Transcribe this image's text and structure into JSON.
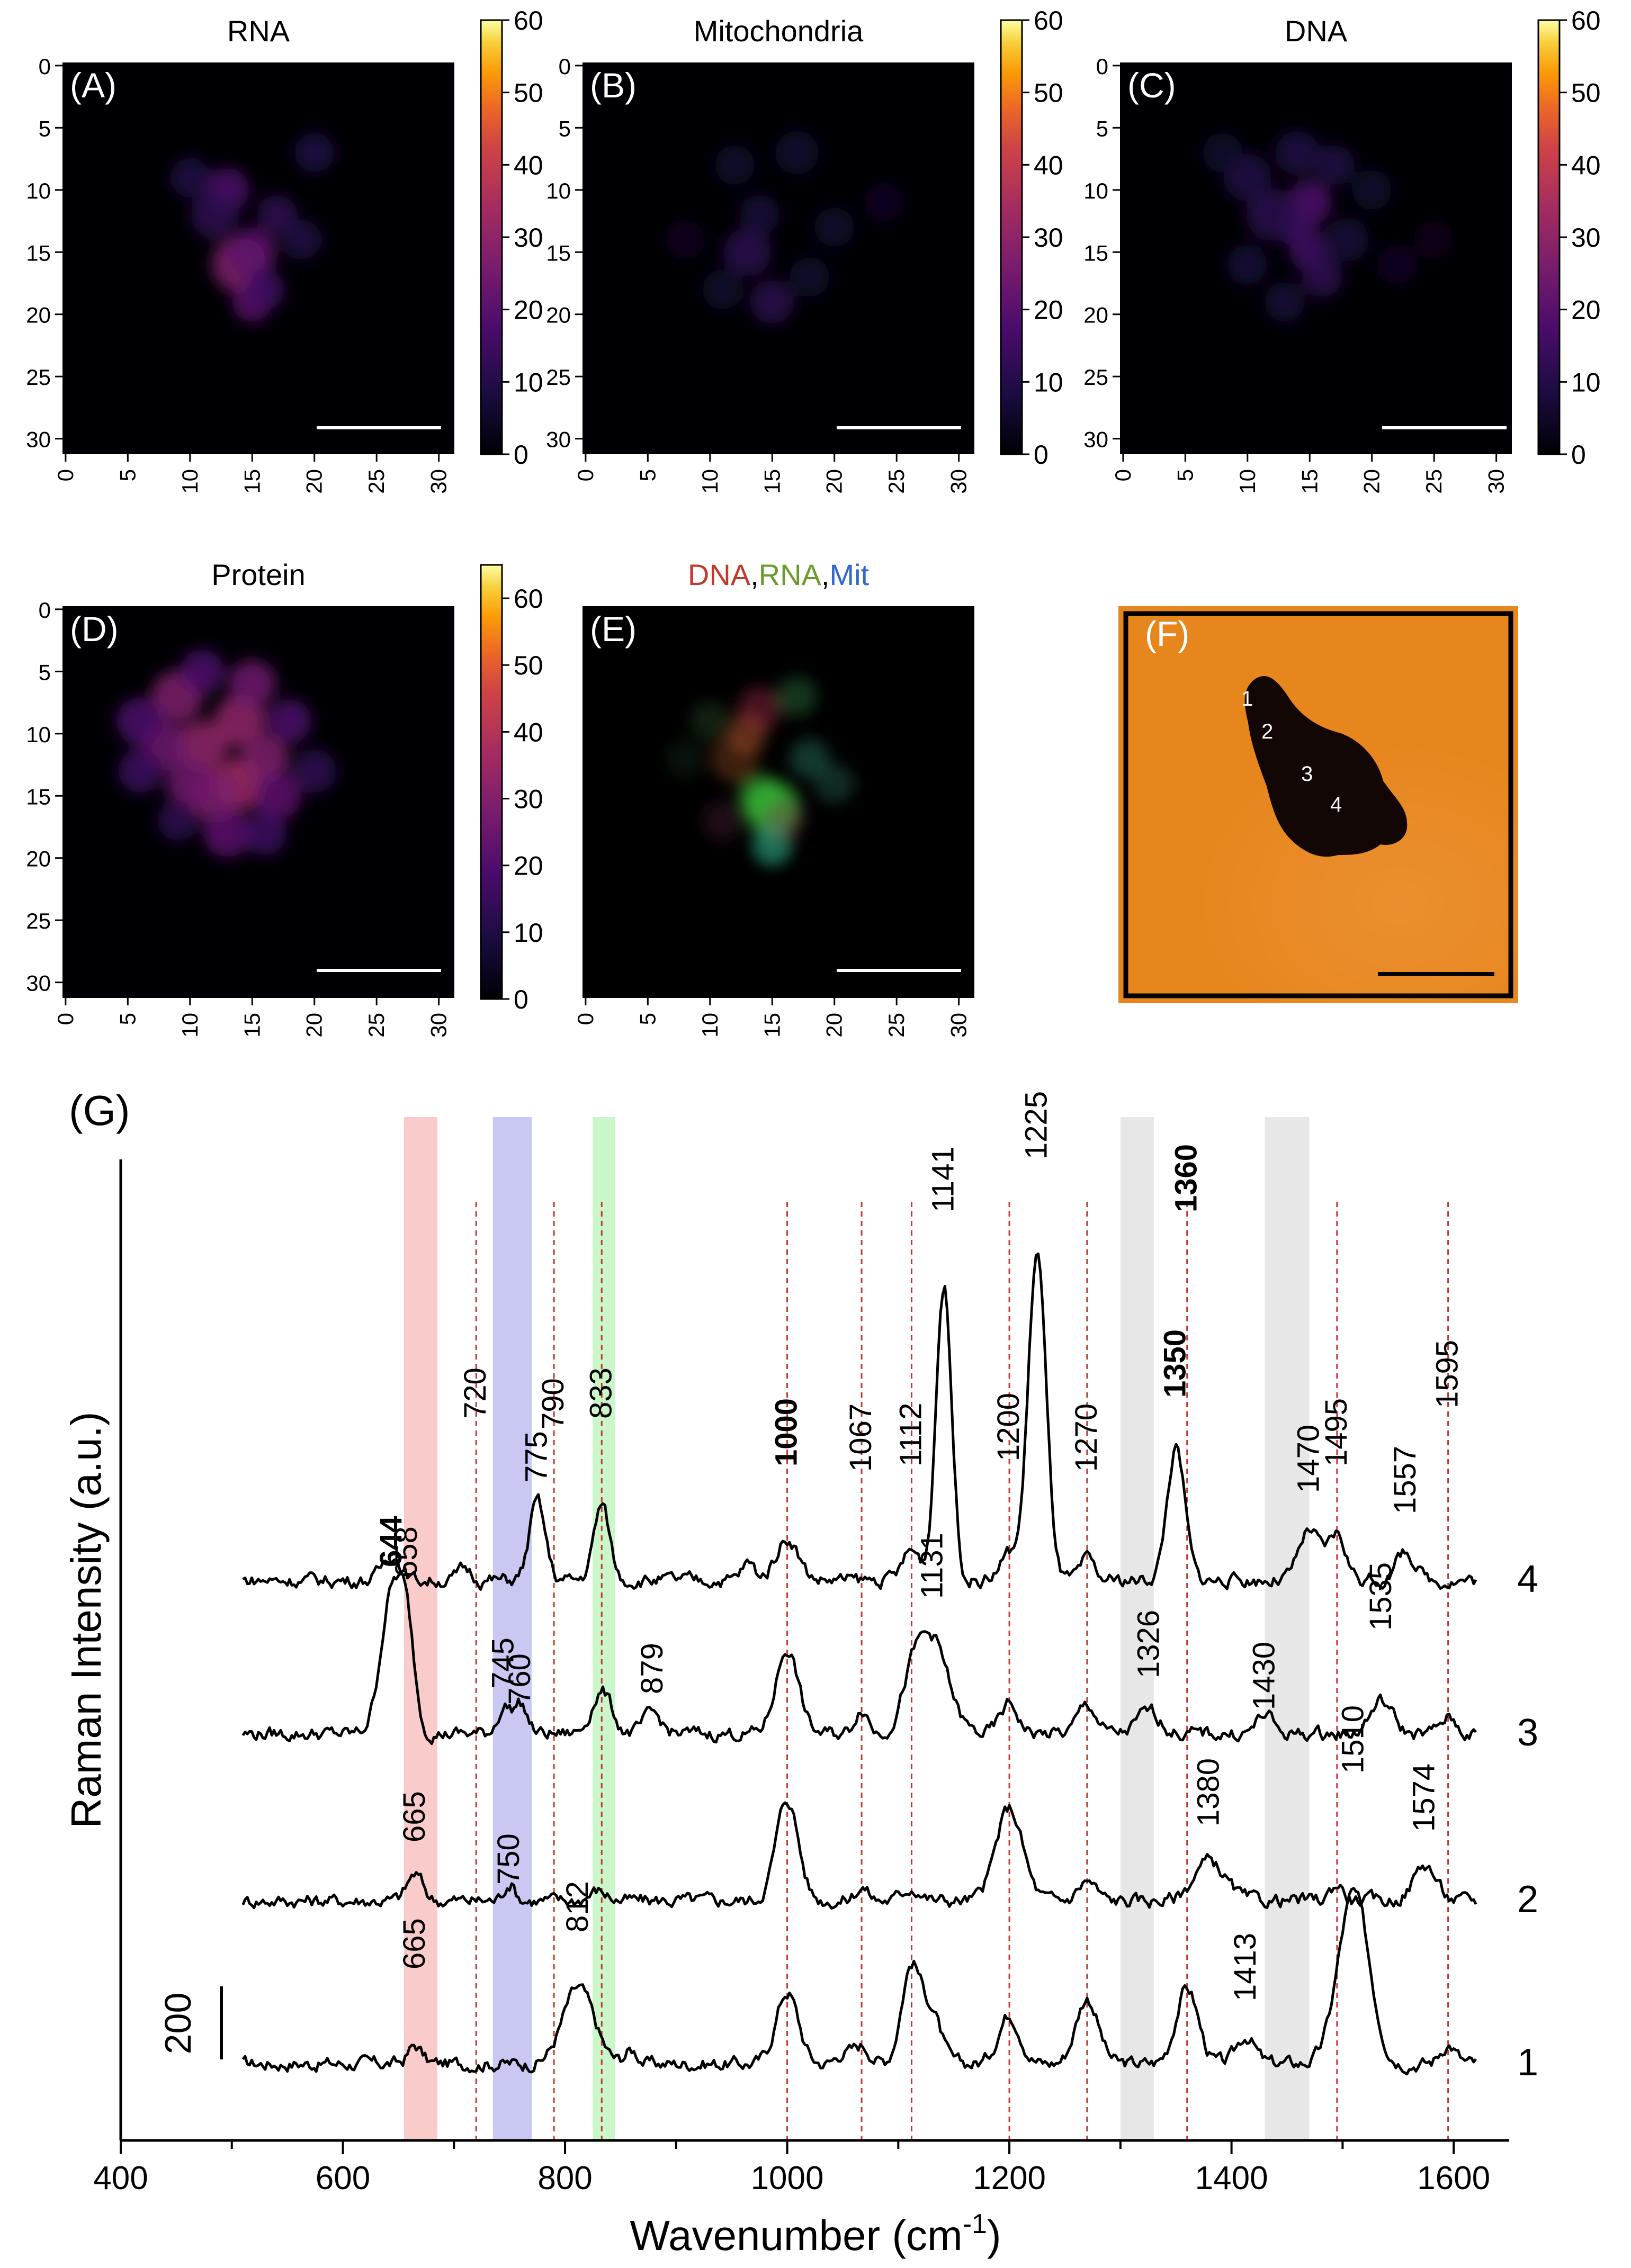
{
  "heatmaps": [
    {
      "letter": "(A)",
      "title": "RNA",
      "cmax": 60,
      "ticks": [
        "0",
        "10",
        "20",
        "30",
        "40",
        "50",
        "60"
      ],
      "blobs": [
        [
          14,
          16,
          1.4,
          0.45
        ],
        [
          15,
          15,
          1.2,
          0.35
        ],
        [
          15,
          19,
          1.0,
          0.35
        ],
        [
          13,
          10,
          1.1,
          0.3
        ],
        [
          12,
          12,
          1.2,
          0.2
        ],
        [
          17,
          12,
          1.0,
          0.2
        ],
        [
          10,
          9,
          1.0,
          0.15
        ],
        [
          20,
          7,
          1.0,
          0.15
        ],
        [
          19,
          14,
          1.0,
          0.15
        ],
        [
          16,
          18,
          1.0,
          0.25
        ]
      ]
    },
    {
      "letter": "(B)",
      "title": "Mitochondria",
      "cmax": 60,
      "ticks": [
        "0",
        "10",
        "20",
        "30",
        "40",
        "50",
        "60"
      ],
      "blobs": [
        [
          13,
          15,
          1.2,
          0.18
        ],
        [
          15,
          19,
          1.1,
          0.18
        ],
        [
          12,
          8,
          1.0,
          0.1
        ],
        [
          17,
          7,
          1.1,
          0.1
        ],
        [
          20,
          13,
          1.0,
          0.1
        ],
        [
          11,
          18,
          1.0,
          0.1
        ],
        [
          14,
          12,
          1.0,
          0.12
        ],
        [
          18,
          17,
          1.0,
          0.1
        ],
        [
          24,
          11,
          1.0,
          0.07
        ],
        [
          8,
          14,
          1.0,
          0.06
        ]
      ]
    },
    {
      "letter": "(C)",
      "title": "DNA",
      "cmax": 60,
      "ticks": [
        "0",
        "10",
        "20",
        "30",
        "40",
        "50",
        "60"
      ],
      "blobs": [
        [
          15,
          11,
          1.1,
          0.3
        ],
        [
          14,
          13,
          1.0,
          0.25
        ],
        [
          15,
          15,
          1.0,
          0.25
        ],
        [
          16,
          17,
          1.0,
          0.2
        ],
        [
          12,
          12,
          1.3,
          0.18
        ],
        [
          10,
          9,
          1.2,
          0.15
        ],
        [
          14,
          7,
          1.1,
          0.15
        ],
        [
          17,
          8,
          1.0,
          0.15
        ],
        [
          10,
          16,
          1.0,
          0.12
        ],
        [
          13,
          19,
          1.0,
          0.12
        ],
        [
          18,
          14,
          1.1,
          0.12
        ],
        [
          20,
          10,
          1.0,
          0.1
        ],
        [
          8,
          7,
          1.0,
          0.1
        ],
        [
          22,
          16,
          1.0,
          0.07
        ],
        [
          25,
          14,
          1.0,
          0.05
        ]
      ]
    },
    {
      "letter": "(D)",
      "title": "Protein",
      "cmax": 65,
      "ticks": [
        "0",
        "10",
        "20",
        "30",
        "40",
        "50",
        "60"
      ],
      "blobs": [
        [
          14,
          14,
          1.3,
          0.55
        ],
        [
          11,
          11,
          1.3,
          0.5
        ],
        [
          14,
          9,
          1.3,
          0.5
        ],
        [
          9,
          7,
          1.3,
          0.45
        ],
        [
          15,
          6,
          1.2,
          0.4
        ],
        [
          12,
          15,
          1.3,
          0.45
        ],
        [
          16,
          12,
          1.2,
          0.45
        ],
        [
          10,
          14,
          1.2,
          0.4
        ],
        [
          17,
          15,
          1.2,
          0.35
        ],
        [
          8,
          11,
          1.2,
          0.4
        ],
        [
          13,
          18,
          1.2,
          0.35
        ],
        [
          6,
          9,
          1.2,
          0.3
        ],
        [
          18,
          9,
          1.1,
          0.3
        ],
        [
          11,
          5,
          1.1,
          0.3
        ],
        [
          16,
          18,
          1.1,
          0.25
        ],
        [
          20,
          13,
          1.1,
          0.2
        ],
        [
          6,
          13,
          1.1,
          0.25
        ],
        [
          9,
          17,
          1.0,
          0.2
        ]
      ]
    }
  ],
  "composite": {
    "letter": "(E)",
    "title_parts": [
      {
        "text": "DNA",
        "color": "#c0392b"
      },
      {
        "text": ",",
        "color": "#000000"
      },
      {
        "text": "RNA",
        "color": "#6a9c2a"
      },
      {
        "text": ",",
        "color": "#000000"
      },
      {
        "text": "Mit",
        "color": "#3366cc"
      }
    ],
    "blobs": [
      [
        15,
        16,
        1.4,
        "#3bc43b",
        0.7
      ],
      [
        14,
        15,
        1.1,
        "#3bc43b",
        0.5
      ],
      [
        15,
        19,
        1.0,
        "#2fb48a",
        0.6
      ],
      [
        13,
        10,
        1.0,
        "#c05a2a",
        0.45
      ],
      [
        14,
        8,
        1.1,
        "#b03050",
        0.4
      ],
      [
        12,
        12,
        1.2,
        "#b05a2a",
        0.35
      ],
      [
        18,
        12,
        1.0,
        "#30a080",
        0.35
      ],
      [
        10,
        9,
        1.0,
        "#3a6a3a",
        0.3
      ],
      [
        17,
        7,
        1.0,
        "#40b060",
        0.3
      ],
      [
        20,
        14,
        1.0,
        "#3a8a7a",
        0.3
      ],
      [
        11,
        17,
        1.0,
        "#7a3060",
        0.25
      ],
      [
        16,
        17,
        1.0,
        "#a04060",
        0.3
      ],
      [
        8,
        12,
        1.0,
        "#2a5a3a",
        0.2
      ]
    ]
  },
  "microscope": {
    "letter": "(F)",
    "points": [
      "1",
      "2",
      "3",
      "4"
    ]
  },
  "axis_ticks": [
    "0",
    "5",
    "10",
    "15",
    "20",
    "25",
    "30"
  ],
  "chart_data": {
    "type": "line",
    "panel": "(G)",
    "xlabel": "Wavenumber (cm",
    "xlabel_sup": "-1",
    "xlabel_close": ")",
    "ylabel": "Raman Intensity (a.u.)",
    "xlim": [
      400,
      1650
    ],
    "xticks": [
      "400",
      "600",
      "800",
      "1000",
      "1200",
      "1400",
      "1600"
    ],
    "scale_bar_label": "200",
    "bands": [
      {
        "from": 655,
        "to": 685,
        "color": "#f4a0a0"
      },
      {
        "from": 735,
        "to": 770,
        "color": "#9a9ae8"
      },
      {
        "from": 825,
        "to": 845,
        "color": "#9ef09e"
      },
      {
        "from": 1300,
        "to": 1330,
        "color": "#d3d3d3"
      },
      {
        "from": 1430,
        "to": 1470,
        "color": "#d3d3d3"
      }
    ],
    "reference_lines": [
      720,
      790,
      833,
      1000,
      1067,
      1112,
      1200,
      1270,
      1360,
      1495,
      1595
    ],
    "series": [
      {
        "name": "1",
        "baseline": 0,
        "range": [
          510,
          1620
        ],
        "peaks": [
          [
            665,
            55,
            6
          ],
          [
            812,
            230,
            14
          ],
          [
            1000,
            220,
            10
          ],
          [
            1067,
            55,
            8
          ],
          [
            1112,
            300,
            9
          ],
          [
            1131,
            140,
            8
          ],
          [
            1200,
            150,
            10
          ],
          [
            1270,
            200,
            10
          ],
          [
            1360,
            230,
            10
          ],
          [
            1413,
            85,
            8
          ],
          [
            1510,
            520,
            14
          ],
          [
            1595,
            60,
            7
          ],
          [
            1050,
            30,
            6
          ],
          [
            860,
            40,
            6
          ]
        ]
      },
      {
        "name": "2",
        "baseline": 0,
        "range": [
          510,
          1620
        ],
        "peaks": [
          [
            665,
            80,
            7
          ],
          [
            750,
            55,
            5
          ],
          [
            1000,
            310,
            10
          ],
          [
            1067,
            40,
            6
          ],
          [
            1112,
            40,
            8
          ],
          [
            1200,
            280,
            12
          ],
          [
            1270,
            60,
            8
          ],
          [
            1380,
            120,
            14
          ],
          [
            1495,
            50,
            6
          ],
          [
            1574,
            110,
            10
          ],
          [
            830,
            30,
            8
          ]
        ]
      },
      {
        "name": "3",
        "baseline": 0,
        "range": [
          510,
          1620
        ],
        "peaks": [
          [
            644,
            420,
            10
          ],
          [
            658,
            250,
            7
          ],
          [
            745,
            80,
            6
          ],
          [
            760,
            90,
            6
          ],
          [
            833,
            130,
            9
          ],
          [
            879,
            60,
            8
          ],
          [
            1000,
            260,
            10
          ],
          [
            1067,
            80,
            6
          ],
          [
            1131,
            280,
            14
          ],
          [
            1112,
            120,
            10
          ],
          [
            1200,
            90,
            8
          ],
          [
            1270,
            90,
            8
          ],
          [
            1326,
            70,
            10
          ],
          [
            1430,
            60,
            7
          ],
          [
            1535,
            100,
            10
          ],
          [
            1595,
            50,
            7
          ]
        ]
      },
      {
        "name": "4",
        "baseline": 0,
        "range": [
          510,
          1620
        ],
        "peaks": [
          [
            644,
            80,
            8
          ],
          [
            775,
            240,
            7
          ],
          [
            833,
            230,
            7
          ],
          [
            1000,
            130,
            10
          ],
          [
            1112,
            90,
            8
          ],
          [
            1141,
            900,
            7
          ],
          [
            1200,
            80,
            8
          ],
          [
            1225,
            1000,
            8
          ],
          [
            1270,
            60,
            6
          ],
          [
            1350,
            400,
            8
          ],
          [
            1470,
            150,
            9
          ],
          [
            1495,
            140,
            8
          ],
          [
            1557,
            90,
            8
          ],
          [
            965,
            50,
            6
          ],
          [
            710,
            35,
            6
          ]
        ]
      }
    ],
    "peak_labels": [
      {
        "text": "720",
        "wn": 720,
        "bold": false
      },
      {
        "text": "775",
        "wn": 775,
        "bold": false
      },
      {
        "text": "790",
        "wn": 790,
        "bold": false
      },
      {
        "text": "833",
        "wn": 833,
        "bold": false
      },
      {
        "text": "1000",
        "wn": 1000,
        "bold": true
      },
      {
        "text": "1067",
        "wn": 1067,
        "bold": false
      },
      {
        "text": "1112",
        "wn": 1112,
        "bold": false
      },
      {
        "text": "1141",
        "wn": 1141,
        "bold": false
      },
      {
        "text": "1200",
        "wn": 1200,
        "bold": false
      },
      {
        "text": "1225",
        "wn": 1225,
        "bold": false
      },
      {
        "text": "1270",
        "wn": 1270,
        "bold": false
      },
      {
        "text": "1350",
        "wn": 1350,
        "bold": true
      },
      {
        "text": "1360",
        "wn": 1360,
        "bold": true
      },
      {
        "text": "1470",
        "wn": 1470,
        "bold": false
      },
      {
        "text": "1495",
        "wn": 1495,
        "bold": false
      },
      {
        "text": "1557",
        "wn": 1557,
        "bold": false
      },
      {
        "text": "1595",
        "wn": 1595,
        "bold": false
      },
      {
        "text": "644",
        "wn": 644,
        "bold": true
      },
      {
        "text": "658",
        "wn": 658,
        "bold": false
      },
      {
        "text": "745",
        "wn": 745,
        "bold": false
      },
      {
        "text": "760",
        "wn": 760,
        "bold": false
      },
      {
        "text": "879",
        "wn": 879,
        "bold": false
      },
      {
        "text": "1131",
        "wn": 1131,
        "bold": false
      },
      {
        "text": "1326",
        "wn": 1326,
        "bold": false
      },
      {
        "text": "1430",
        "wn": 1430,
        "bold": false
      },
      {
        "text": "1535",
        "wn": 1535,
        "bold": false
      },
      {
        "text": "665",
        "wn": 665,
        "bold": false
      },
      {
        "text": "750",
        "wn": 750,
        "bold": false
      },
      {
        "text": "1380",
        "wn": 1380,
        "bold": false
      },
      {
        "text": "1510",
        "wn": 1510,
        "bold": false
      },
      {
        "text": "1574",
        "wn": 1574,
        "bold": false
      },
      {
        "text": "665",
        "wn": 665,
        "bold": false
      },
      {
        "text": "812",
        "wn": 812,
        "bold": false
      },
      {
        "text": "1413",
        "wn": 1413,
        "bold": false
      }
    ]
  }
}
